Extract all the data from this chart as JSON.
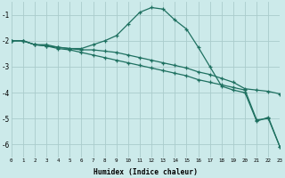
{
  "xlabel": "Humidex (Indice chaleur)",
  "bg_color": "#cceaea",
  "grid_color": "#aacccc",
  "line_color": "#1e7060",
  "xlim": [
    0,
    23
  ],
  "ylim": [
    -6.5,
    -0.5
  ],
  "yticks": [
    -6,
    -5,
    -4,
    -3,
    -2,
    -1
  ],
  "xticks": [
    0,
    1,
    2,
    3,
    4,
    5,
    6,
    7,
    8,
    9,
    10,
    11,
    12,
    13,
    14,
    15,
    16,
    17,
    18,
    19,
    20,
    21,
    22,
    23
  ],
  "line1_x": [
    0,
    1,
    2,
    3,
    4,
    5,
    6,
    7,
    8,
    9,
    10,
    11,
    12,
    13,
    14,
    15,
    16,
    17,
    18,
    19,
    20,
    21,
    22,
    23
  ],
  "line1_y": [
    -2.0,
    -2.0,
    -2.15,
    -2.15,
    -2.25,
    -2.3,
    -2.3,
    -2.15,
    -2.0,
    -1.8,
    -1.35,
    -0.9,
    -0.72,
    -0.78,
    -1.2,
    -1.55,
    -2.25,
    -3.0,
    -3.75,
    -3.9,
    -4.0,
    -5.1,
    -4.95,
    -6.1
  ],
  "line2_x": [
    0,
    1,
    2,
    3,
    4,
    5,
    6,
    7,
    8,
    9,
    10,
    11,
    12,
    13,
    14,
    15,
    16,
    17,
    18,
    19,
    20,
    21,
    22,
    23
  ],
  "line2_y": [
    -2.0,
    -2.0,
    -2.15,
    -2.2,
    -2.3,
    -2.35,
    -2.45,
    -2.55,
    -2.65,
    -2.75,
    -2.85,
    -2.95,
    -3.05,
    -3.15,
    -3.25,
    -3.35,
    -3.5,
    -3.6,
    -3.7,
    -3.8,
    -3.9,
    -5.05,
    -5.0,
    -6.1
  ],
  "line3_x": [
    0,
    1,
    2,
    3,
    4,
    5,
    6,
    7,
    8,
    9,
    10,
    11,
    12,
    13,
    14,
    15,
    16,
    17,
    18,
    19,
    20,
    21,
    22,
    23
  ],
  "line3_y": [
    -2.0,
    -2.0,
    -2.15,
    -2.2,
    -2.25,
    -2.3,
    -2.35,
    -2.35,
    -2.4,
    -2.45,
    -2.55,
    -2.65,
    -2.75,
    -2.85,
    -2.95,
    -3.05,
    -3.2,
    -3.3,
    -3.45,
    -3.6,
    -3.85,
    -3.9,
    -3.95,
    -4.05
  ]
}
